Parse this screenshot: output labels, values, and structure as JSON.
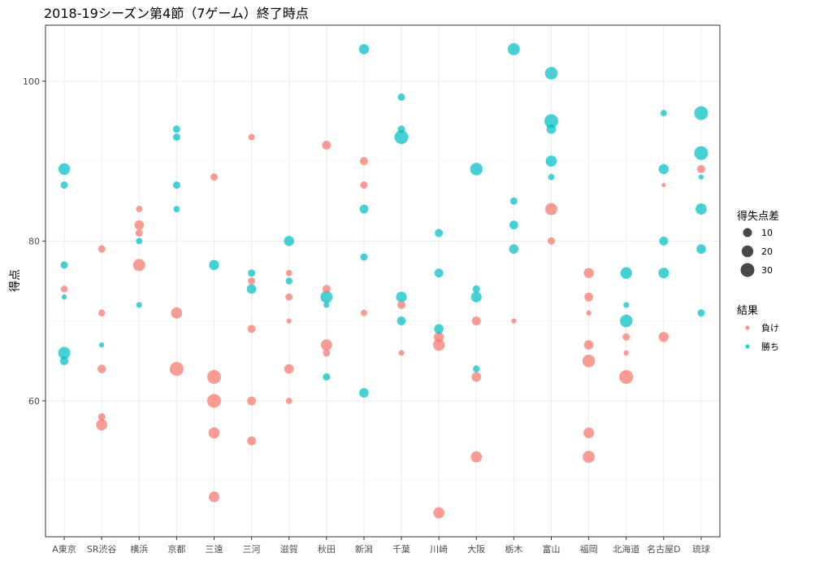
{
  "chart_data": {
    "type": "scatter",
    "title": "2018-19シーズン第4節（7ゲーム）終了時点",
    "ylabel": "得点",
    "xlabel": "",
    "ylim": [
      43,
      107
    ],
    "yticks": [
      60,
      80,
      100
    ],
    "grid": true,
    "categories": [
      "A東京",
      "SR渋谷",
      "横浜",
      "京都",
      "三遠",
      "三河",
      "滋賀",
      "秋田",
      "新潟",
      "千葉",
      "川崎",
      "大阪",
      "栃木",
      "富山",
      "福岡",
      "北海道",
      "名古屋D",
      "琉球"
    ],
    "size_legend": {
      "title": "得失点差",
      "values": [
        10,
        20,
        30
      ]
    },
    "color_legend": {
      "title": "結果",
      "items": [
        {
          "key": "lose",
          "label": "負け",
          "color": "#F8766D"
        },
        {
          "key": "win",
          "label": "勝ち",
          "color": "#00BFC4"
        }
      ]
    },
    "points": [
      {
        "team": "A東京",
        "score": 89,
        "diff": 20,
        "result": "win"
      },
      {
        "team": "A東京",
        "score": 87,
        "diff": 6,
        "result": "win"
      },
      {
        "team": "A東京",
        "score": 77,
        "diff": 6,
        "result": "win"
      },
      {
        "team": "A東京",
        "score": 74,
        "diff": 5,
        "result": "lose"
      },
      {
        "team": "A東京",
        "score": 73,
        "diff": 2,
        "result": "win"
      },
      {
        "team": "A東京",
        "score": 66,
        "diff": 22,
        "result": "win"
      },
      {
        "team": "A東京",
        "score": 65,
        "diff": 9,
        "result": "win"
      },
      {
        "team": "SR渋谷",
        "score": 79,
        "diff": 6,
        "result": "lose"
      },
      {
        "team": "SR渋谷",
        "score": 71,
        "diff": 5,
        "result": "lose"
      },
      {
        "team": "SR渋谷",
        "score": 67,
        "diff": 2,
        "result": "win"
      },
      {
        "team": "SR渋谷",
        "score": 64,
        "diff": 9,
        "result": "lose"
      },
      {
        "team": "SR渋谷",
        "score": 58,
        "diff": 6,
        "result": "lose"
      },
      {
        "team": "SR渋谷",
        "score": 57,
        "diff": 18,
        "result": "lose"
      },
      {
        "team": "横浜",
        "score": 84,
        "diff": 4,
        "result": "lose"
      },
      {
        "team": "横浜",
        "score": 82,
        "diff": 12,
        "result": "lose"
      },
      {
        "team": "横浜",
        "score": 81,
        "diff": 6,
        "result": "lose"
      },
      {
        "team": "横浜",
        "score": 80,
        "diff": 4,
        "result": "win"
      },
      {
        "team": "横浜",
        "score": 77,
        "diff": 22,
        "result": "lose"
      },
      {
        "team": "横浜",
        "score": 72,
        "diff": 3,
        "result": "win"
      },
      {
        "team": "京都",
        "score": 94,
        "diff": 6,
        "result": "win"
      },
      {
        "team": "京都",
        "score": 93,
        "diff": 6,
        "result": "win"
      },
      {
        "team": "京都",
        "score": 87,
        "diff": 6,
        "result": "win"
      },
      {
        "team": "京都",
        "score": 84,
        "diff": 4,
        "result": "win"
      },
      {
        "team": "京都",
        "score": 71,
        "diff": 18,
        "result": "lose"
      },
      {
        "team": "京都",
        "score": 64,
        "diff": 30,
        "result": "lose"
      },
      {
        "team": "三遠",
        "score": 88,
        "diff": 6,
        "result": "lose"
      },
      {
        "team": "三遠",
        "score": 77,
        "diff": 14,
        "result": "win"
      },
      {
        "team": "三遠",
        "score": 63,
        "diff": 30,
        "result": "lose"
      },
      {
        "team": "三遠",
        "score": 60,
        "diff": 30,
        "result": "lose"
      },
      {
        "team": "三遠",
        "score": 56,
        "diff": 18,
        "result": "lose"
      },
      {
        "team": "三遠",
        "score": 48,
        "diff": 16,
        "result": "lose"
      },
      {
        "team": "三河",
        "score": 93,
        "diff": 4,
        "result": "lose"
      },
      {
        "team": "三河",
        "score": 76,
        "diff": 6,
        "result": "win"
      },
      {
        "team": "三河",
        "score": 75,
        "diff": 6,
        "result": "lose"
      },
      {
        "team": "三河",
        "score": 74,
        "diff": 12,
        "result": "win"
      },
      {
        "team": "三河",
        "score": 69,
        "diff": 8,
        "result": "lose"
      },
      {
        "team": "三河",
        "score": 60,
        "diff": 10,
        "result": "lose"
      },
      {
        "team": "三河",
        "score": 55,
        "diff": 10,
        "result": "lose"
      },
      {
        "team": "滋賀",
        "score": 80,
        "diff": 14,
        "result": "win"
      },
      {
        "team": "滋賀",
        "score": 76,
        "diff": 4,
        "result": "lose"
      },
      {
        "team": "滋賀",
        "score": 75,
        "diff": 5,
        "result": "win"
      },
      {
        "team": "滋賀",
        "score": 73,
        "diff": 6,
        "result": "lose"
      },
      {
        "team": "滋賀",
        "score": 70,
        "diff": 2,
        "result": "lose"
      },
      {
        "team": "滋賀",
        "score": 64,
        "diff": 12,
        "result": "lose"
      },
      {
        "team": "滋賀",
        "score": 60,
        "diff": 4,
        "result": "lose"
      },
      {
        "team": "秋田",
        "score": 92,
        "diff": 10,
        "result": "lose"
      },
      {
        "team": "秋田",
        "score": 74,
        "diff": 8,
        "result": "lose"
      },
      {
        "team": "秋田",
        "score": 73,
        "diff": 22,
        "result": "win"
      },
      {
        "team": "秋田",
        "score": 72,
        "diff": 3,
        "result": "win"
      },
      {
        "team": "秋田",
        "score": 67,
        "diff": 18,
        "result": "lose"
      },
      {
        "team": "秋田",
        "score": 66,
        "diff": 6,
        "result": "lose"
      },
      {
        "team": "秋田",
        "score": 63,
        "diff": 6,
        "result": "win"
      },
      {
        "team": "新潟",
        "score": 104,
        "diff": 14,
        "result": "win"
      },
      {
        "team": "新潟",
        "score": 90,
        "diff": 8,
        "result": "lose"
      },
      {
        "team": "新潟",
        "score": 87,
        "diff": 6,
        "result": "lose"
      },
      {
        "team": "新潟",
        "score": 84,
        "diff": 10,
        "result": "win"
      },
      {
        "team": "新潟",
        "score": 78,
        "diff": 6,
        "result": "win"
      },
      {
        "team": "新潟",
        "score": 71,
        "diff": 4,
        "result": "lose"
      },
      {
        "team": "新潟",
        "score": 61,
        "diff": 12,
        "result": "win"
      },
      {
        "team": "千葉",
        "score": 98,
        "diff": 6,
        "result": "win"
      },
      {
        "team": "千葉",
        "score": 94,
        "diff": 6,
        "result": "win"
      },
      {
        "team": "千葉",
        "score": 93,
        "diff": 30,
        "result": "win"
      },
      {
        "team": "千葉",
        "score": 73,
        "diff": 16,
        "result": "win"
      },
      {
        "team": "千葉",
        "score": 72,
        "diff": 8,
        "result": "lose"
      },
      {
        "team": "千葉",
        "score": 70,
        "diff": 10,
        "result": "win"
      },
      {
        "team": "千葉",
        "score": 66,
        "diff": 3,
        "result": "lose"
      },
      {
        "team": "川崎",
        "score": 81,
        "diff": 8,
        "result": "win"
      },
      {
        "team": "川崎",
        "score": 76,
        "diff": 10,
        "result": "win"
      },
      {
        "team": "川崎",
        "score": 69,
        "diff": 12,
        "result": "win"
      },
      {
        "team": "川崎",
        "score": 68,
        "diff": 14,
        "result": "lose"
      },
      {
        "team": "川崎",
        "score": 67,
        "diff": 20,
        "result": "lose"
      },
      {
        "team": "川崎",
        "score": 46,
        "diff": 18,
        "result": "lose"
      },
      {
        "team": "大阪",
        "score": 89,
        "diff": 24,
        "result": "win"
      },
      {
        "team": "大阪",
        "score": 74,
        "diff": 6,
        "result": "win"
      },
      {
        "team": "大阪",
        "score": 73,
        "diff": 16,
        "result": "win"
      },
      {
        "team": "大阪",
        "score": 70,
        "diff": 10,
        "result": "lose"
      },
      {
        "team": "大阪",
        "score": 64,
        "diff": 5,
        "result": "win"
      },
      {
        "team": "大阪",
        "score": 63,
        "diff": 12,
        "result": "lose"
      },
      {
        "team": "大阪",
        "score": 53,
        "diff": 18,
        "result": "lose"
      },
      {
        "team": "栃木",
        "score": 104,
        "diff": 22,
        "result": "win"
      },
      {
        "team": "栃木",
        "score": 85,
        "diff": 6,
        "result": "win"
      },
      {
        "team": "栃木",
        "score": 82,
        "diff": 10,
        "result": "win"
      },
      {
        "team": "栃木",
        "score": 79,
        "diff": 12,
        "result": "win"
      },
      {
        "team": "栃木",
        "score": 70,
        "diff": 2,
        "result": "lose"
      },
      {
        "team": "富山",
        "score": 101,
        "diff": 24,
        "result": "win"
      },
      {
        "team": "富山",
        "score": 95,
        "diff": 30,
        "result": "win"
      },
      {
        "team": "富山",
        "score": 94,
        "diff": 12,
        "result": "win"
      },
      {
        "team": "富山",
        "score": 90,
        "diff": 18,
        "result": "win"
      },
      {
        "team": "富山",
        "score": 88,
        "diff": 4,
        "result": "win"
      },
      {
        "team": "富山",
        "score": 84,
        "diff": 22,
        "result": "lose"
      },
      {
        "team": "富山",
        "score": 80,
        "diff": 6,
        "result": "lose"
      },
      {
        "team": "福岡",
        "score": 76,
        "diff": 14,
        "result": "lose"
      },
      {
        "team": "福岡",
        "score": 73,
        "diff": 10,
        "result": "lose"
      },
      {
        "team": "福岡",
        "score": 71,
        "diff": 2,
        "result": "lose"
      },
      {
        "team": "福岡",
        "score": 67,
        "diff": 12,
        "result": "lose"
      },
      {
        "team": "福岡",
        "score": 65,
        "diff": 24,
        "result": "lose"
      },
      {
        "team": "福岡",
        "score": 56,
        "diff": 16,
        "result": "lose"
      },
      {
        "team": "福岡",
        "score": 53,
        "diff": 22,
        "result": "lose"
      },
      {
        "team": "北海道",
        "score": 76,
        "diff": 20,
        "result": "win"
      },
      {
        "team": "北海道",
        "score": 72,
        "diff": 3,
        "result": "win"
      },
      {
        "team": "北海道",
        "score": 70,
        "diff": 24,
        "result": "win"
      },
      {
        "team": "北海道",
        "score": 68,
        "diff": 6,
        "result": "lose"
      },
      {
        "team": "北海道",
        "score": 66,
        "diff": 2,
        "result": "lose"
      },
      {
        "team": "北海道",
        "score": 63,
        "diff": 30,
        "result": "lose"
      },
      {
        "team": "名古屋D",
        "score": 96,
        "diff": 4,
        "result": "win"
      },
      {
        "team": "名古屋D",
        "score": 89,
        "diff": 14,
        "result": "win"
      },
      {
        "team": "名古屋D",
        "score": 87,
        "diff": 1,
        "result": "lose"
      },
      {
        "team": "名古屋D",
        "score": 80,
        "diff": 10,
        "result": "win"
      },
      {
        "team": "名古屋D",
        "score": 76,
        "diff": 16,
        "result": "win"
      },
      {
        "team": "名古屋D",
        "score": 68,
        "diff": 14,
        "result": "lose"
      },
      {
        "team": "琉球",
        "score": 96,
        "diff": 30,
        "result": "win"
      },
      {
        "team": "琉球",
        "score": 91,
        "diff": 30,
        "result": "win"
      },
      {
        "team": "琉球",
        "score": 89,
        "diff": 8,
        "result": "lose"
      },
      {
        "team": "琉球",
        "score": 88,
        "diff": 2,
        "result": "win"
      },
      {
        "team": "琉球",
        "score": 84,
        "diff": 18,
        "result": "win"
      },
      {
        "team": "琉球",
        "score": 79,
        "diff": 12,
        "result": "win"
      },
      {
        "team": "琉球",
        "score": 71,
        "diff": 6,
        "result": "win"
      }
    ]
  }
}
